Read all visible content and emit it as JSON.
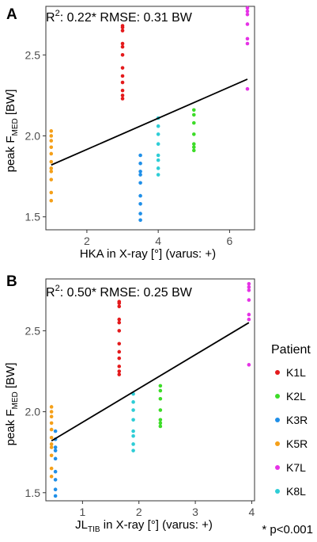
{
  "colors": {
    "line": "#000000",
    "axis": "#333333",
    "tick_text": "#4d4d4d",
    "K1L": "#e41a1c",
    "K2L": "#3ddc28",
    "K3R": "#1f8fe8",
    "K5R": "#f5a019",
    "K7L": "#e632e6",
    "K8L": "#2ecdd6"
  },
  "legend": {
    "title": "Patient",
    "position": "right",
    "entries": [
      "K1L",
      "K2L",
      "K3R",
      "K5R",
      "K7L",
      "K8L"
    ]
  },
  "footnote": "* p<0.001",
  "chart_data": [
    {
      "type": "scatter",
      "panel_label": "A",
      "annotation": {
        "r2_prefix": "R",
        "r2_exp": "2",
        "text": ": 0.22* RMSE: 0.31 BW"
      },
      "ylabel": {
        "main": "peak F",
        "sub": "MED",
        "tail": " [BW]"
      },
      "xlabel": {
        "main": "HKA in X-ray [°] (varus: +)"
      },
      "xlim": [
        0.85,
        6.7
      ],
      "ylim": [
        1.42,
        2.8
      ],
      "xticks": [
        2,
        4,
        6
      ],
      "yticks": [
        1.5,
        2.0,
        2.5
      ],
      "ytick_labels": [
        "1.5",
        "2.0",
        "2.5"
      ],
      "grid": false,
      "regression": {
        "x": [
          1.0,
          6.5
        ],
        "y": [
          1.82,
          2.35
        ]
      },
      "series": [
        {
          "name": "K1L",
          "x": 3.0,
          "values": [
            2.23,
            2.25,
            2.28,
            2.33,
            2.37,
            2.42,
            2.5,
            2.55,
            2.57,
            2.65,
            2.67,
            2.68
          ]
        },
        {
          "name": "K2L",
          "x": 5.0,
          "values": [
            1.91,
            1.93,
            1.95,
            2.01,
            2.08,
            2.13,
            2.16
          ]
        },
        {
          "name": "K3R",
          "x": 3.5,
          "values": [
            1.48,
            1.52,
            1.58,
            1.63,
            1.71,
            1.76,
            1.78,
            1.83,
            1.88
          ]
        },
        {
          "name": "K5R",
          "x": 1.0,
          "values": [
            1.6,
            1.65,
            1.73,
            1.78,
            1.8,
            1.84,
            1.89,
            1.93,
            1.97,
            2.0,
            2.03
          ]
        },
        {
          "name": "K7L",
          "x": 6.5,
          "values": [
            2.29,
            2.57,
            2.6,
            2.69,
            2.75,
            2.77,
            2.79
          ]
        },
        {
          "name": "K8L",
          "x": 4.0,
          "values": [
            1.76,
            1.8,
            1.85,
            1.88,
            1.95,
            2.01,
            2.06,
            2.11
          ]
        }
      ]
    },
    {
      "type": "scatter",
      "panel_label": "B",
      "annotation": {
        "r2_prefix": "R",
        "r2_exp": "2",
        "text": ": 0.50* RMSE: 0.25 BW"
      },
      "ylabel": {
        "main": "peak F",
        "sub": "MED",
        "tail": " [BW]"
      },
      "xlabel": {
        "main": "JL",
        "sub": "TIB",
        "tail": " in X-ray [°] (varus: +)"
      },
      "xlim": [
        0.35,
        4.05
      ],
      "ylim": [
        1.45,
        2.82
      ],
      "xticks": [
        1,
        2,
        3,
        4
      ],
      "yticks": [
        1.5,
        2.0,
        2.5
      ],
      "ytick_labels": [
        "1.5",
        "2.0",
        "2.5"
      ],
      "grid": false,
      "regression": {
        "x": [
          0.45,
          3.95
        ],
        "y": [
          1.82,
          2.55
        ]
      },
      "series": [
        {
          "name": "K1L",
          "x": 1.65,
          "values": [
            2.23,
            2.25,
            2.28,
            2.33,
            2.37,
            2.42,
            2.5,
            2.55,
            2.57,
            2.65,
            2.67,
            2.68
          ]
        },
        {
          "name": "K2L",
          "x": 2.38,
          "values": [
            1.91,
            1.93,
            1.95,
            2.01,
            2.08,
            2.13,
            2.16
          ]
        },
        {
          "name": "K3R",
          "x": 0.52,
          "values": [
            1.48,
            1.52,
            1.58,
            1.63,
            1.71,
            1.76,
            1.78,
            1.83,
            1.88
          ]
        },
        {
          "name": "K5R",
          "x": 0.45,
          "values": [
            1.6,
            1.65,
            1.73,
            1.78,
            1.8,
            1.84,
            1.89,
            1.93,
            1.97,
            2.0,
            2.03
          ]
        },
        {
          "name": "K7L",
          "x": 3.95,
          "values": [
            2.29,
            2.57,
            2.6,
            2.69,
            2.75,
            2.77,
            2.79
          ]
        },
        {
          "name": "K8L",
          "x": 1.9,
          "values": [
            1.76,
            1.8,
            1.85,
            1.88,
            1.95,
            2.01,
            2.06,
            2.11
          ]
        }
      ]
    }
  ]
}
